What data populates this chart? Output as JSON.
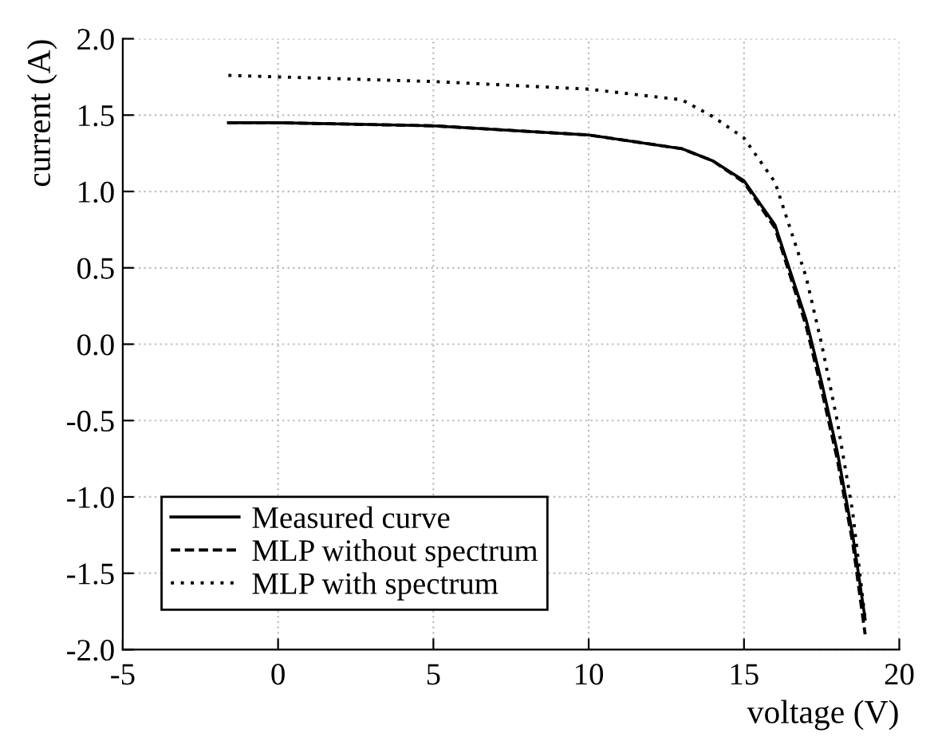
{
  "chart_data": {
    "type": "line",
    "xlabel": "voltage (V)",
    "ylabel": "current (A)",
    "xlim": [
      -5,
      20
    ],
    "ylim": [
      -2.0,
      2.0
    ],
    "xticks": [
      -5,
      0,
      5,
      10,
      15,
      20
    ],
    "yticks": [
      {
        "value": -2.0,
        "label": "-2.0"
      },
      {
        "value": -1.5,
        "label": "-1.5"
      },
      {
        "value": -1.0,
        "label": "-1.0"
      },
      {
        "value": -0.5,
        "label": "-0.5"
      },
      {
        "value": 0.0,
        "label": "0.0"
      },
      {
        "value": 0.5,
        "label": "0.5"
      },
      {
        "value": 1.0,
        "label": "1.0"
      },
      {
        "value": 1.5,
        "label": "1.5"
      },
      {
        "value": 2.0,
        "label": "2.0"
      }
    ],
    "grid": true,
    "legend": "bottom left",
    "series": [
      {
        "name": "Measured curve",
        "color": "#000000",
        "line_style": "solid",
        "x": [
          -1.6,
          0,
          5,
          10,
          13,
          14,
          15,
          16,
          17,
          17.5,
          18,
          18.5,
          18.9
        ],
        "values": [
          1.45,
          1.45,
          1.43,
          1.37,
          1.28,
          1.2,
          1.07,
          0.78,
          0.16,
          -0.25,
          -0.7,
          -1.25,
          -1.8
        ]
      },
      {
        "name": "MLP without spectrum",
        "color": "#000000",
        "line_style": "dashed",
        "x": [
          -1.6,
          0,
          5,
          10,
          13,
          14,
          15,
          16,
          17,
          17.5,
          18,
          18.5,
          18.9
        ],
        "values": [
          1.45,
          1.45,
          1.43,
          1.37,
          1.28,
          1.2,
          1.06,
          0.76,
          0.12,
          -0.3,
          -0.75,
          -1.3,
          -1.9
        ]
      },
      {
        "name": "MLP with spectrum",
        "color": "#000000",
        "line_style": "dotted",
        "x": [
          -1.6,
          0,
          5,
          10,
          13,
          14,
          15,
          16,
          17,
          17.5,
          18,
          18.5,
          18.9
        ],
        "values": [
          1.76,
          1.75,
          1.72,
          1.67,
          1.6,
          1.49,
          1.35,
          1.06,
          0.44,
          0.0,
          -0.5,
          -1.1,
          -1.8
        ]
      }
    ]
  }
}
